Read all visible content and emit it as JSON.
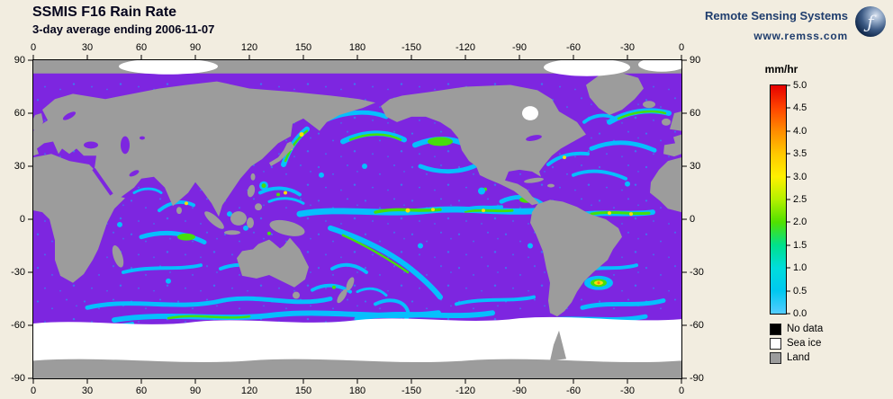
{
  "header": {
    "title": "SSMIS F16 Rain Rate",
    "subtitle": "3-day average ending 2006-11-07",
    "brand": "Remote Sensing Systems",
    "website": "www.remss.com",
    "logo_glyph": "ƒ"
  },
  "map": {
    "x_ticks": [
      "0",
      "30",
      "60",
      "90",
      "120",
      "150",
      "180",
      "-150",
      "-120",
      "-90",
      "-60",
      "-30",
      "0"
    ],
    "y_ticks": [
      "90",
      "60",
      "30",
      "0",
      "-30",
      "-60",
      "-90"
    ],
    "colors": {
      "ocean_no_rain": "#7D26E0",
      "land": "#9C9C9C",
      "sea_ice": "#FFFFFF",
      "no_data": "#000000",
      "rain_light": "#00C8FF",
      "rain_moderate": "#44E800",
      "rain_heavy": "#FFE800",
      "rain_intense": "#FF8A00"
    }
  },
  "colorbar": {
    "units": "mm/hr",
    "tick_labels": [
      "5.0",
      "4.5",
      "4.0",
      "3.5",
      "3.0",
      "2.5",
      "2.0",
      "1.5",
      "1.0",
      "0.5",
      "0.0"
    ],
    "gradient_top_to_bottom": [
      "#E60000",
      "#FF4500",
      "#FF8C00",
      "#FFC800",
      "#FFF000",
      "#B4F000",
      "#50E000",
      "#00E08C",
      "#00DCDC",
      "#00C8F0",
      "#55CCFF"
    ]
  },
  "legend": {
    "items": [
      {
        "label": "No data",
        "color": "#000000"
      },
      {
        "label": "Sea ice",
        "color": "#FFFFFF"
      },
      {
        "label": "Land",
        "color": "#9C9C9C"
      }
    ]
  }
}
